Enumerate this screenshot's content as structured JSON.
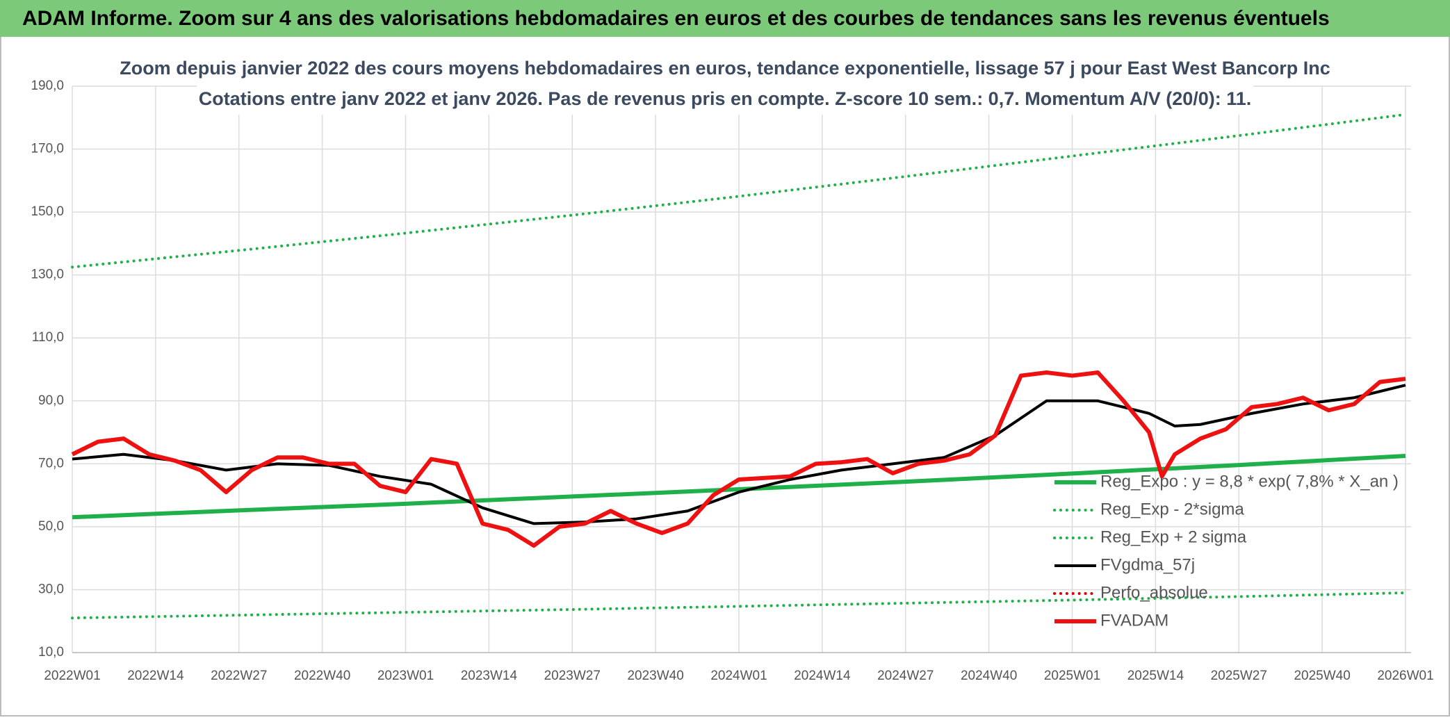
{
  "header": {
    "title": "ADAM Informe. Zoom sur 4 ans des valorisations hebdomadaires en euros et des courbes de tendances sans les revenus éventuels"
  },
  "chart_data": {
    "type": "line",
    "title": "Zoom depuis janvier 2022 des cours moyens hebdomadaires en euros, tendance exponentielle, lissage 57 j pour East West Bancorp Inc",
    "subtitle": "Cotations entre janv 2022 et janv 2026. Pas de revenus pris en compte. Z-score 10 sem.: 0,7. Momentum A/V (20/0): 11.",
    "xlim": [
      0,
      208
    ],
    "xticks": [
      {
        "value": 0,
        "label": "2022W01"
      },
      {
        "value": 13,
        "label": "2022W14"
      },
      {
        "value": 26,
        "label": "2022W27"
      },
      {
        "value": 39,
        "label": "2022W40"
      },
      {
        "value": 52,
        "label": "2023W01"
      },
      {
        "value": 65,
        "label": "2023W14"
      },
      {
        "value": 78,
        "label": "2023W27"
      },
      {
        "value": 91,
        "label": "2023W40"
      },
      {
        "value": 104,
        "label": "2024W01"
      },
      {
        "value": 117,
        "label": "2024W14"
      },
      {
        "value": 130,
        "label": "2024W27"
      },
      {
        "value": 143,
        "label": "2024W40"
      },
      {
        "value": 156,
        "label": "2025W01"
      },
      {
        "value": 169,
        "label": "2025W14"
      },
      {
        "value": 182,
        "label": "2025W27"
      },
      {
        "value": 195,
        "label": "2025W40"
      },
      {
        "value": 208,
        "label": "2026W01"
      }
    ],
    "ylim": [
      10,
      190
    ],
    "yticks": [
      {
        "value": 10,
        "label": "10,0"
      },
      {
        "value": 30,
        "label": "30,0"
      },
      {
        "value": 50,
        "label": "50,0"
      },
      {
        "value": 70,
        "label": "70,0"
      },
      {
        "value": 90,
        "label": "90,0"
      },
      {
        "value": 110,
        "label": "110,0"
      },
      {
        "value": 130,
        "label": "130,0"
      },
      {
        "value": 150,
        "label": "150,0"
      },
      {
        "value": 170,
        "label": "170,0"
      },
      {
        "value": 190,
        "label": "190,0"
      }
    ],
    "grid": true,
    "legend": "right",
    "series": [
      {
        "name": "Reg_Expo : y = 8,8 * exp( 7,8% *  X_an )",
        "color": "#1fb04a",
        "dash": "solid",
        "width": 6,
        "x": [
          0,
          26,
          52,
          78,
          104,
          130,
          156,
          182,
          208
        ],
        "values": [
          53,
          55.2,
          57.3,
          59.6,
          61.9,
          64.3,
          66.9,
          69.6,
          72.5
        ]
      },
      {
        "name": "Reg_Exp - 2*sigma",
        "color": "#1fb04a",
        "dash": "dotted",
        "width": 4,
        "x": [
          0,
          26,
          52,
          78,
          104,
          130,
          156,
          182,
          208
        ],
        "values": [
          21,
          21.9,
          22.8,
          23.7,
          24.7,
          25.7,
          26.7,
          27.8,
          29
        ]
      },
      {
        "name": "Reg_Exp + 2 sigma",
        "color": "#1fb04a",
        "dash": "dotted",
        "width": 4,
        "x": [
          0,
          26,
          52,
          78,
          104,
          130,
          156,
          182,
          208
        ],
        "values": [
          132.5,
          137.8,
          143.3,
          149,
          155,
          161.3,
          167.8,
          174.3,
          181
        ]
      },
      {
        "name": "FVgdma_57j",
        "color": "#000000",
        "dash": "solid",
        "width": 4,
        "x": [
          0,
          8,
          16,
          24,
          32,
          40,
          48,
          56,
          64,
          72,
          80,
          88,
          96,
          104,
          112,
          120,
          128,
          136,
          144,
          152,
          160,
          168,
          172,
          176,
          184,
          192,
          200,
          208
        ],
        "values": [
          71.5,
          73,
          71,
          68,
          70,
          69.5,
          66,
          63.5,
          56,
          51,
          51.5,
          52.5,
          55,
          61,
          65,
          68,
          70,
          72,
          79,
          90,
          90,
          86,
          82,
          82.5,
          86,
          89,
          91,
          95
        ]
      },
      {
        "name": "Perfo_absolue",
        "color": "#e00000",
        "dash": "dotted",
        "width": 4,
        "x": [],
        "values": []
      },
      {
        "name": "FVADAM",
        "color": "#ee1111",
        "dash": "solid",
        "width": 6,
        "x": [
          0,
          4,
          8,
          12,
          16,
          20,
          24,
          28,
          32,
          36,
          40,
          44,
          48,
          52,
          56,
          60,
          64,
          68,
          72,
          76,
          80,
          84,
          88,
          92,
          96,
          100,
          104,
          108,
          112,
          116,
          120,
          124,
          128,
          132,
          136,
          140,
          144,
          148,
          152,
          156,
          160,
          164,
          168,
          170,
          172,
          176,
          180,
          184,
          188,
          192,
          196,
          200,
          204,
          208
        ],
        "values": [
          73,
          77,
          78,
          73,
          71,
          68,
          61,
          68,
          72,
          72,
          70,
          70,
          63,
          61,
          71.5,
          70,
          51,
          49,
          44,
          50,
          51,
          55,
          51,
          48,
          51,
          60,
          65,
          65.5,
          66,
          70,
          70.5,
          71.5,
          67,
          70,
          71,
          73,
          79,
          98,
          99,
          98,
          99,
          90,
          80,
          66,
          73,
          78,
          81,
          88,
          89,
          91,
          87,
          89,
          96,
          97
        ]
      }
    ]
  }
}
